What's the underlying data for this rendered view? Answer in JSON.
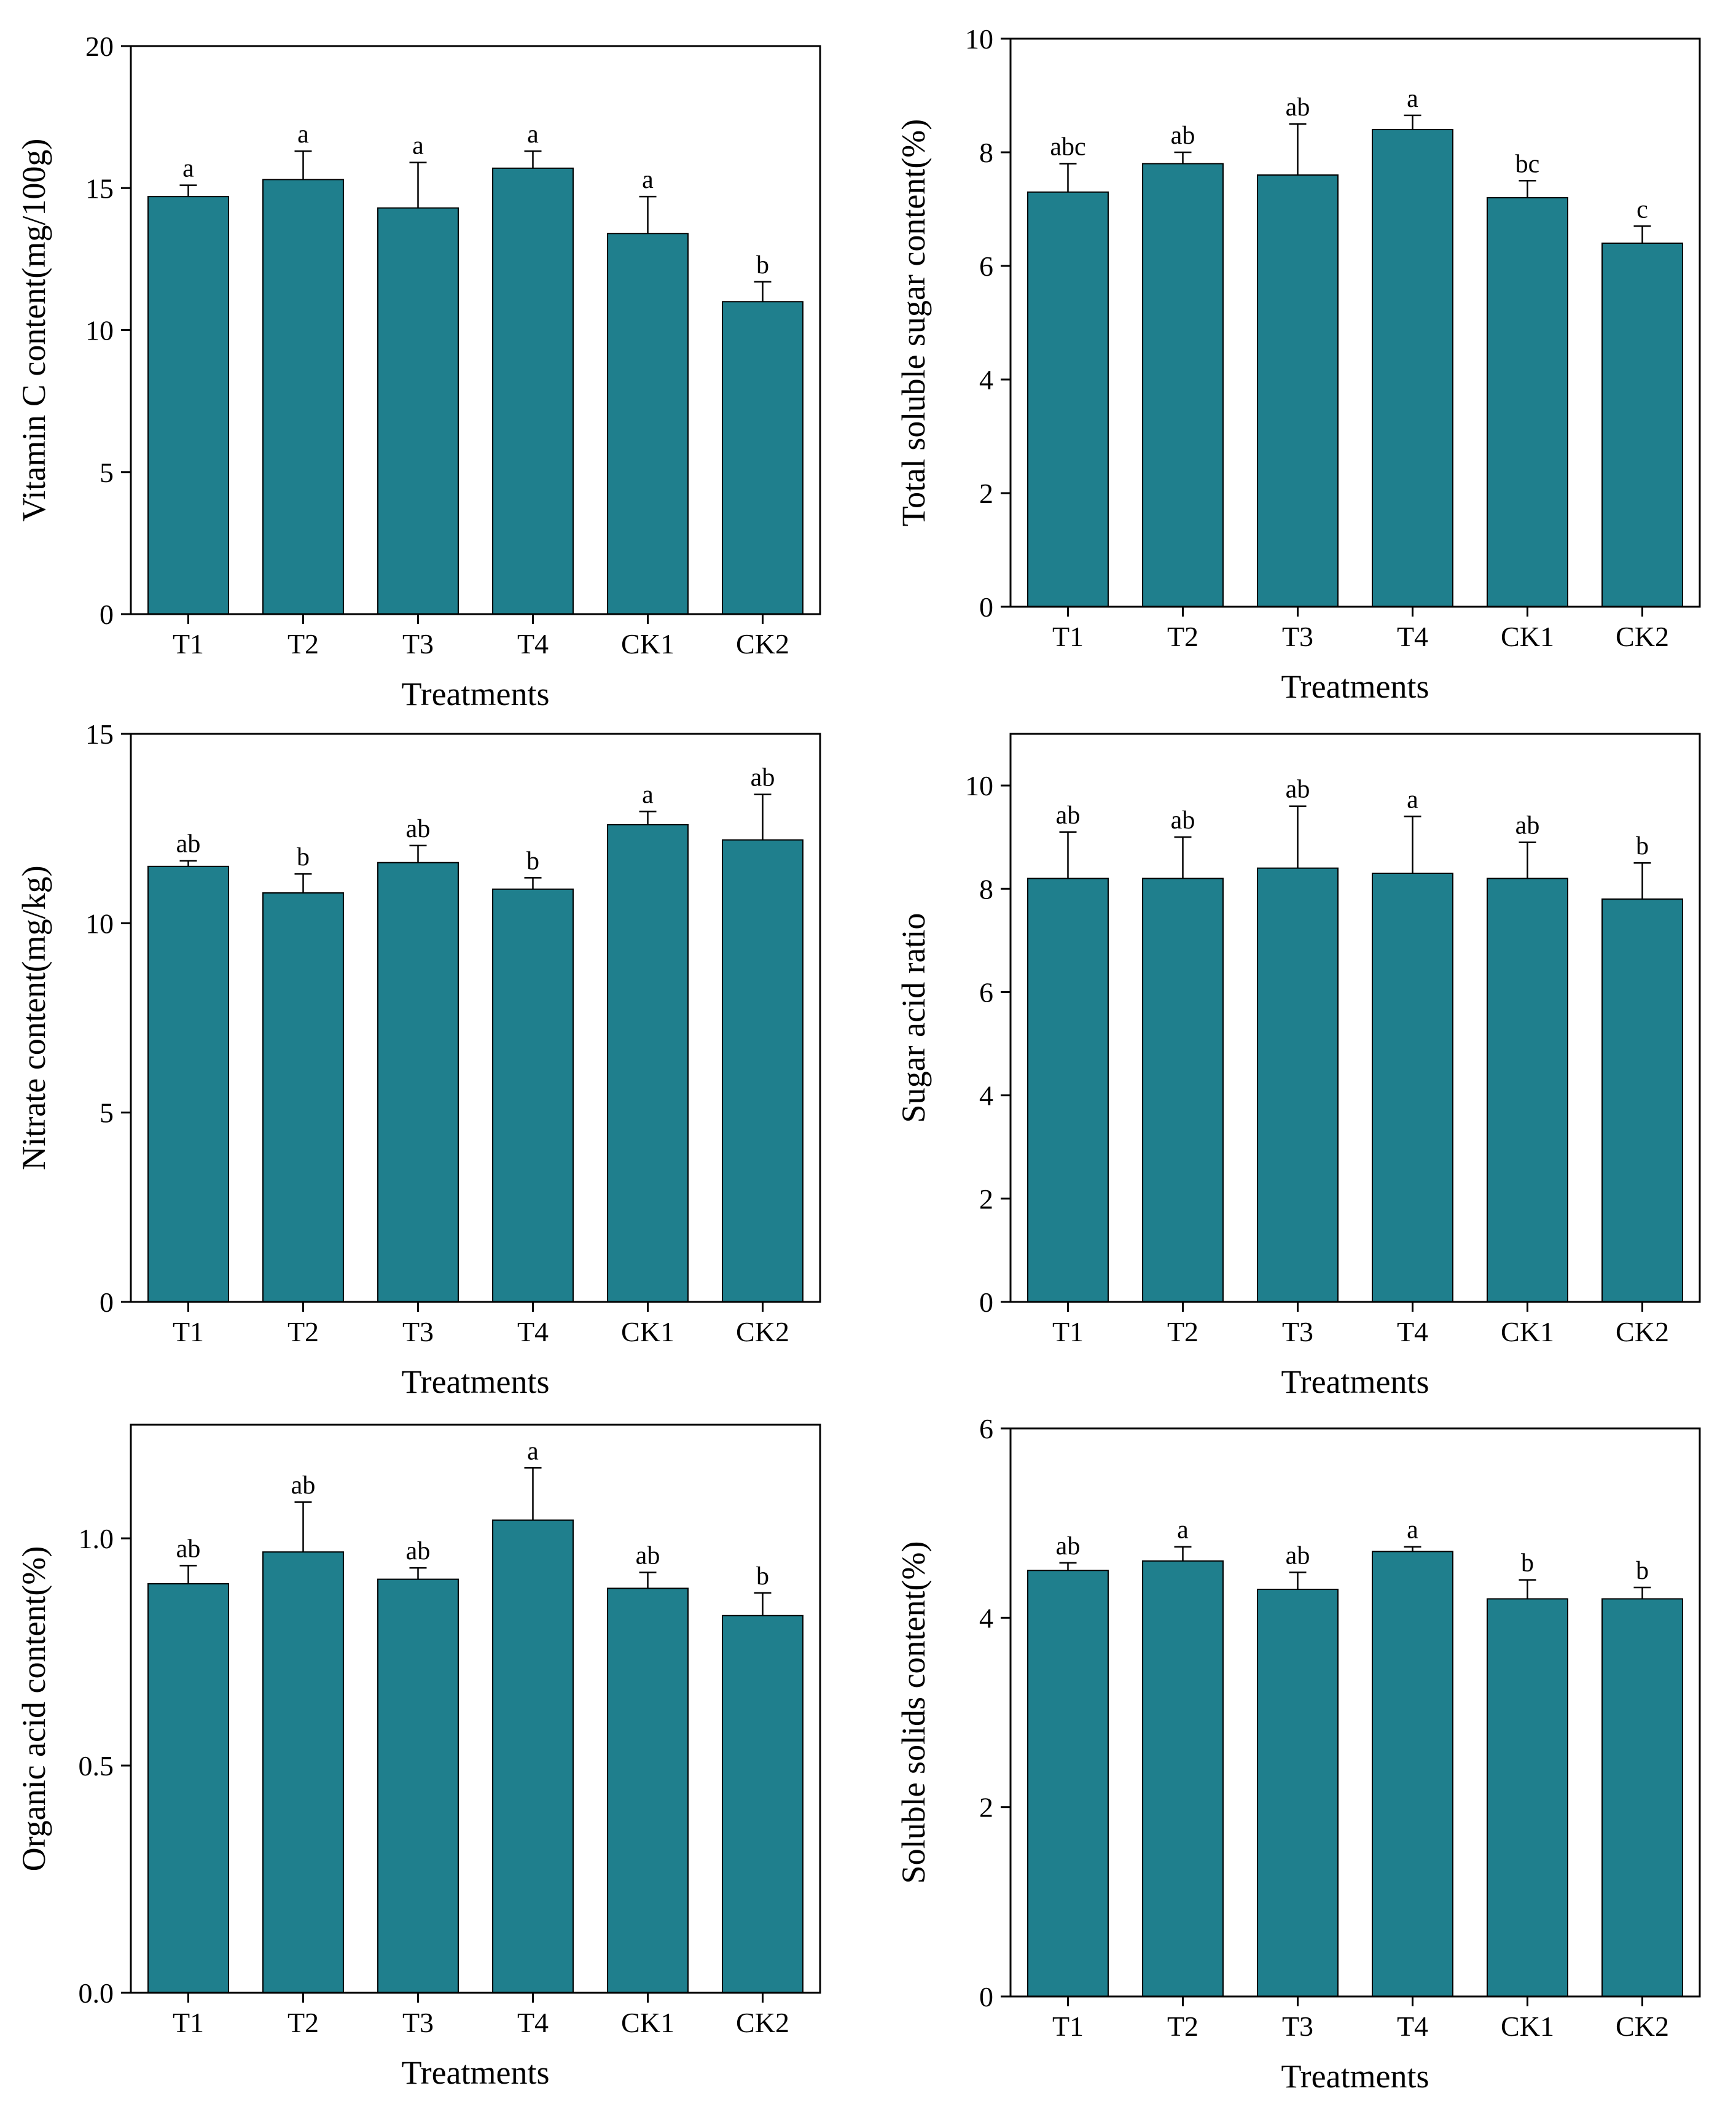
{
  "chart_data": [
    {
      "type": "bar",
      "title": "",
      "categories": [
        "T1",
        "T2",
        "T3",
        "T4",
        "CK1",
        "CK2"
      ],
      "values": [
        14.7,
        15.3,
        14.3,
        15.7,
        13.4,
        11.0
      ],
      "errors": [
        0.4,
        1.0,
        1.6,
        0.6,
        1.3,
        0.7
      ],
      "labels": [
        "a",
        "a",
        "a",
        "a",
        "a",
        "b"
      ],
      "xlabel": "Treatments",
      "ylabel": "Vitamin C content(mg/100g)",
      "ylim": [
        0,
        20
      ],
      "yticks": [
        0,
        5,
        10,
        15,
        20
      ],
      "ytick_labels": [
        "0",
        "5",
        "10",
        "15",
        "20"
      ]
    },
    {
      "type": "bar",
      "title": "",
      "categories": [
        "T1",
        "T2",
        "T3",
        "T4",
        "CK1",
        "CK2"
      ],
      "values": [
        7.3,
        7.8,
        7.6,
        8.4,
        7.2,
        6.4
      ],
      "errors": [
        0.5,
        0.2,
        0.9,
        0.25,
        0.3,
        0.3
      ],
      "labels": [
        "abc",
        "ab",
        "ab",
        "a",
        "bc",
        "c"
      ],
      "xlabel": "Treatments",
      "ylabel": "Total soluble sugar content(%)",
      "ylim": [
        0,
        10
      ],
      "yticks": [
        0,
        2,
        4,
        6,
        8,
        10
      ],
      "ytick_labels": [
        "0",
        "2",
        "4",
        "6",
        "8",
        "10"
      ]
    },
    {
      "type": "bar",
      "title": "",
      "categories": [
        "T1",
        "T2",
        "T3",
        "T4",
        "CK1",
        "CK2"
      ],
      "values": [
        11.5,
        10.8,
        11.6,
        10.9,
        12.6,
        12.2
      ],
      "errors": [
        0.15,
        0.5,
        0.45,
        0.3,
        0.35,
        1.2
      ],
      "labels": [
        "ab",
        "b",
        "ab",
        "b",
        "a",
        "ab"
      ],
      "xlabel": "Treatments",
      "ylabel": "Nitrate content(mg/kg)",
      "ylim": [
        0,
        15
      ],
      "yticks": [
        0,
        5,
        10,
        15
      ],
      "ytick_labels": [
        "0",
        "5",
        "10",
        "15"
      ]
    },
    {
      "type": "bar",
      "title": "",
      "categories": [
        "T1",
        "T2",
        "T3",
        "T4",
        "CK1",
        "CK2"
      ],
      "values": [
        8.2,
        8.2,
        8.4,
        8.3,
        8.2,
        7.8
      ],
      "errors": [
        0.9,
        0.8,
        1.2,
        1.1,
        0.7,
        0.7
      ],
      "labels": [
        "ab",
        "ab",
        "ab",
        "a",
        "ab",
        "b"
      ],
      "xlabel": "Treatments",
      "ylabel": "Sugar acid ratio",
      "ylim": [
        0,
        11
      ],
      "yticks": [
        0,
        2,
        4,
        6,
        8,
        10
      ],
      "ytick_labels": [
        "0",
        "2",
        "4",
        "6",
        "8",
        "10"
      ]
    },
    {
      "type": "bar",
      "title": "",
      "categories": [
        "T1",
        "T2",
        "T3",
        "T4",
        "CK1",
        "CK2"
      ],
      "values": [
        0.9,
        0.97,
        0.91,
        1.04,
        0.89,
        0.83
      ],
      "errors": [
        0.04,
        0.11,
        0.025,
        0.115,
        0.035,
        0.05
      ],
      "labels": [
        "ab",
        "ab",
        "ab",
        "a",
        "ab",
        "b"
      ],
      "xlabel": "Treatments",
      "ylabel": "Organic acid content(%)",
      "ylim": [
        0,
        1.25
      ],
      "yticks": [
        0,
        0.5,
        1.0
      ],
      "ytick_labels": [
        "0.0",
        "0.5",
        "1.0"
      ]
    },
    {
      "type": "bar",
      "title": "",
      "categories": [
        "T1",
        "T2",
        "T3",
        "T4",
        "CK1",
        "CK2"
      ],
      "values": [
        4.5,
        4.6,
        4.3,
        4.7,
        4.2,
        4.2
      ],
      "errors": [
        0.08,
        0.15,
        0.18,
        0.05,
        0.2,
        0.12
      ],
      "labels": [
        "ab",
        "a",
        "ab",
        "a",
        "b",
        "b"
      ],
      "xlabel": "Treatments",
      "ylabel": "Soluble solids content(%)",
      "ylim": [
        0,
        6
      ],
      "yticks": [
        0,
        2,
        4,
        6
      ],
      "ytick_labels": [
        "0",
        "2",
        "4",
        "6"
      ]
    }
  ]
}
